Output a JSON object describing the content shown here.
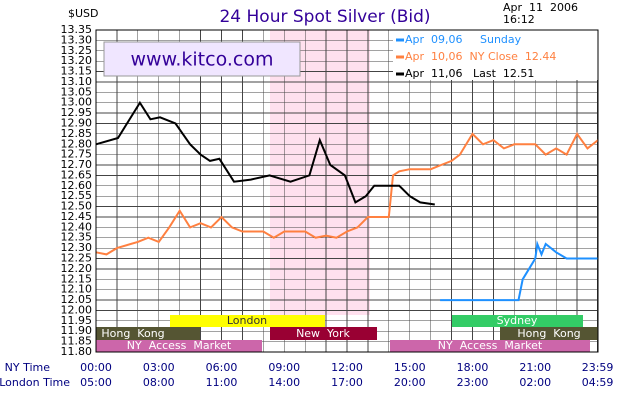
{
  "chart_data": {
    "type": "line",
    "title": "24 Hour Spot Silver (Bid)",
    "y_label": "$USD",
    "date": "Apr  11  2006",
    "time": "16:12",
    "source": "www.kitco.com",
    "x_label": "NY Time",
    "x2_label": "London Time",
    "xlim": [
      0,
      24
    ],
    "xticks": [
      {
        "value": 0,
        "label": "00:00"
      },
      {
        "value": 3,
        "label": "03:00"
      },
      {
        "value": 6,
        "label": "06:00"
      },
      {
        "value": 9,
        "label": "09:00"
      },
      {
        "value": 12,
        "label": "12:00"
      },
      {
        "value": 15,
        "label": "15:00"
      },
      {
        "value": 18,
        "label": "18:00"
      },
      {
        "value": 21,
        "label": "21:00"
      },
      {
        "value": 23.98,
        "label": "23:59"
      }
    ],
    "x2ticks": [
      {
        "value": 0,
        "label": "05:00"
      },
      {
        "value": 3,
        "label": "08:00"
      },
      {
        "value": 6,
        "label": "11:00"
      },
      {
        "value": 9,
        "label": "14:00"
      },
      {
        "value": 12,
        "label": "17:00"
      },
      {
        "value": 15,
        "label": "20:00"
      },
      {
        "value": 18,
        "label": "23:00"
      },
      {
        "value": 21,
        "label": "02:00"
      },
      {
        "value": 23.98,
        "label": "04:59"
      }
    ],
    "ylim": [
      11.8,
      13.35
    ],
    "yticks": [
      {
        "value": 11.8,
        "label": "11.80"
      },
      {
        "value": 11.85,
        "label": "11.85"
      },
      {
        "value": 11.9,
        "label": "11.90"
      },
      {
        "value": 11.95,
        "label": "11.95"
      },
      {
        "value": 12.0,
        "label": "12.00"
      },
      {
        "value": 12.05,
        "label": "12.05"
      },
      {
        "value": 12.1,
        "label": "12.10"
      },
      {
        "value": 12.15,
        "label": "12.15"
      },
      {
        "value": 12.2,
        "label": "12.20"
      },
      {
        "value": 12.25,
        "label": "12.25"
      },
      {
        "value": 12.3,
        "label": "12.30"
      },
      {
        "value": 12.35,
        "label": "12.35"
      },
      {
        "value": 12.4,
        "label": "12.40"
      },
      {
        "value": 12.45,
        "label": "12.45"
      },
      {
        "value": 12.5,
        "label": "12.50"
      },
      {
        "value": 12.55,
        "label": "12.55"
      },
      {
        "value": 12.6,
        "label": "12.60"
      },
      {
        "value": 12.65,
        "label": "12.65"
      },
      {
        "value": 12.7,
        "label": "12.70"
      },
      {
        "value": 12.75,
        "label": "12.75"
      },
      {
        "value": 12.8,
        "label": "12.80"
      },
      {
        "value": 12.85,
        "label": "12.85"
      },
      {
        "value": 12.9,
        "label": "12.90"
      },
      {
        "value": 12.95,
        "label": "12.95"
      },
      {
        "value": 13.0,
        "label": "13.00"
      },
      {
        "value": 13.05,
        "label": "13.05"
      },
      {
        "value": 13.1,
        "label": "13.10"
      },
      {
        "value": 13.15,
        "label": "13.15"
      },
      {
        "value": 13.2,
        "label": "13.20"
      },
      {
        "value": 13.25,
        "label": "13.25"
      },
      {
        "value": 13.3,
        "label": "13.30"
      },
      {
        "value": 13.35,
        "label": "13.35"
      }
    ],
    "grid": true,
    "sessions": [
      "London",
      "Sydney",
      "Hong  Kong",
      "New  York",
      "Hong  Kong",
      "NY  Access  Market",
      "NY  Access  Market"
    ],
    "series": [
      {
        "name": "Apr  09,06     Sunday",
        "color": "#1e90ff",
        "x": [
          16.45,
          20.2,
          20.4,
          21.0,
          21.1,
          21.3,
          21.5,
          22.0,
          22.5,
          24
        ],
        "values": [
          12.05,
          12.05,
          12.15,
          12.25,
          12.32,
          12.27,
          12.32,
          12.28,
          12.25,
          12.25
        ]
      },
      {
        "name": "Apr  10,06  NY Close  12.44",
        "color": "#ff8040",
        "x": [
          0,
          0.5,
          1,
          2,
          2.5,
          3,
          3.5,
          4,
          4.5,
          5,
          5.5,
          6,
          6.5,
          7,
          8,
          8.5,
          9,
          10,
          10.5,
          11,
          11.5,
          12,
          12.5,
          13,
          13.5,
          14,
          14.2,
          14.5,
          15,
          16,
          16.5,
          17,
          17.4,
          18,
          18.5,
          19,
          19.5,
          20,
          21,
          21.5,
          22,
          22.5,
          23,
          23.5,
          24
        ],
        "values": [
          12.28,
          12.27,
          12.3,
          12.33,
          12.35,
          12.33,
          12.4,
          12.48,
          12.4,
          12.42,
          12.4,
          12.45,
          12.4,
          12.38,
          12.38,
          12.35,
          12.38,
          12.38,
          12.35,
          12.36,
          12.35,
          12.38,
          12.4,
          12.45,
          12.45,
          12.45,
          12.65,
          12.67,
          12.68,
          12.68,
          12.7,
          12.72,
          12.75,
          12.85,
          12.8,
          12.82,
          12.78,
          12.8,
          12.8,
          12.75,
          12.78,
          12.75,
          12.85,
          12.78,
          12.82
        ]
      },
      {
        "name": "Apr  11,06   Last  12.51",
        "color": "#000000",
        "x": [
          0,
          1.05,
          2.1,
          2.6,
          3.06,
          3.8,
          4.5,
          5,
          5.45,
          5.9,
          6.6,
          7.4,
          8.3,
          9.3,
          10.2,
          10.7,
          11.2,
          11.9,
          12.4,
          12.9,
          13.3,
          14.5,
          15,
          15.5,
          16.2
        ],
        "values": [
          12.8,
          12.83,
          13.0,
          12.92,
          12.93,
          12.9,
          12.8,
          12.75,
          12.72,
          12.73,
          12.62,
          12.63,
          12.65,
          12.62,
          12.65,
          12.82,
          12.7,
          12.65,
          12.52,
          12.55,
          12.6,
          12.6,
          12.55,
          12.52,
          12.51
        ]
      }
    ]
  }
}
